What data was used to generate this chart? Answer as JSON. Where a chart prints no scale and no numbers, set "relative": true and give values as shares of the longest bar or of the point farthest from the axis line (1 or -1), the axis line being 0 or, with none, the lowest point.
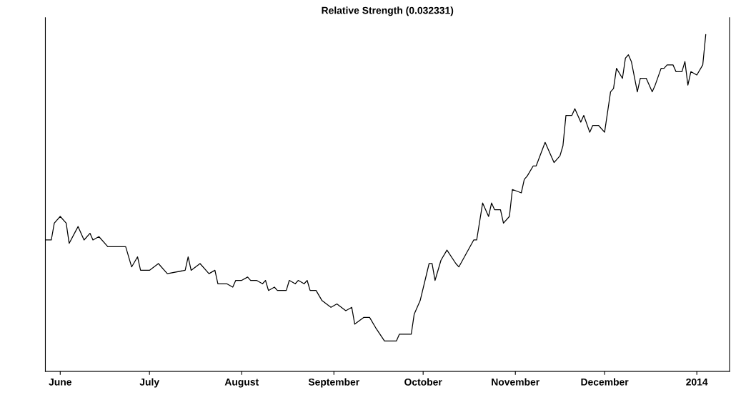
{
  "chart_data": {
    "type": "line",
    "title": "Relative Strength (0.032331)",
    "relative": true,
    "xlim": [
      "2013-05-27",
      "2014-01-12"
    ],
    "xticks": [
      {
        "value": "2013-06-01",
        "label": "June"
      },
      {
        "value": "2013-07-01",
        "label": "July"
      },
      {
        "value": "2013-08-01",
        "label": "August"
      },
      {
        "value": "2013-09-01",
        "label": "September"
      },
      {
        "value": "2013-10-01",
        "label": "October"
      },
      {
        "value": "2013-11-01",
        "label": "November"
      },
      {
        "value": "2013-12-01",
        "label": "December"
      },
      {
        "value": "2014-01-01",
        "label": "2014"
      }
    ],
    "grid": false,
    "marker": "none",
    "line_style": "solid",
    "series": [
      {
        "color": "#000000",
        "x": [
          "2013-05-27",
          "2013-05-29",
          "2013-05-30",
          "2013-06-01",
          "2013-06-03",
          "2013-06-04",
          "2013-06-07",
          "2013-06-09",
          "2013-06-11",
          "2013-06-12",
          "2013-06-14",
          "2013-06-17",
          "2013-06-18",
          "2013-06-23",
          "2013-06-25",
          "2013-06-27",
          "2013-06-28",
          "2013-07-01",
          "2013-07-04",
          "2013-07-07",
          "2013-07-13",
          "2013-07-14",
          "2013-07-15",
          "2013-07-18",
          "2013-07-21",
          "2013-07-23",
          "2013-07-24",
          "2013-07-27",
          "2013-07-29",
          "2013-07-30",
          "2013-08-01",
          "2013-08-03",
          "2013-08-04",
          "2013-08-06",
          "2013-08-08",
          "2013-08-09",
          "2013-08-10",
          "2013-08-12",
          "2013-08-13",
          "2013-08-16",
          "2013-08-17",
          "2013-08-19",
          "2013-08-20",
          "2013-08-22",
          "2013-08-23",
          "2013-08-24",
          "2013-08-26",
          "2013-08-28",
          "2013-08-31",
          "2013-09-02",
          "2013-09-05",
          "2013-09-07",
          "2013-09-08",
          "2013-09-11",
          "2013-09-13",
          "2013-09-15",
          "2013-09-18",
          "2013-09-22",
          "2013-09-23",
          "2013-09-27",
          "2013-09-28",
          "2013-09-30",
          "2013-10-03",
          "2013-10-04",
          "2013-10-05",
          "2013-10-07",
          "2013-10-09",
          "2013-10-12",
          "2013-10-13",
          "2013-10-18",
          "2013-10-19",
          "2013-10-21",
          "2013-10-23",
          "2013-10-24",
          "2013-10-25",
          "2013-10-27",
          "2013-10-28",
          "2013-10-30",
          "2013-10-31",
          "2013-11-03",
          "2013-11-04",
          "2013-11-05",
          "2013-11-07",
          "2013-11-08",
          "2013-11-11",
          "2013-11-14",
          "2013-11-16",
          "2013-11-17",
          "2013-11-18",
          "2013-11-20",
          "2013-11-21",
          "2013-11-23",
          "2013-11-24",
          "2013-11-26",
          "2013-11-27",
          "2013-11-29",
          "2013-12-01",
          "2013-12-03",
          "2013-12-04",
          "2013-12-05",
          "2013-12-07",
          "2013-12-08",
          "2013-12-09",
          "2013-12-10",
          "2013-12-12",
          "2013-12-13",
          "2013-12-15",
          "2013-12-17",
          "2013-12-18",
          "2013-12-20",
          "2013-12-21",
          "2013-12-22",
          "2013-12-24",
          "2013-12-25",
          "2013-12-27",
          "2013-12-28",
          "2013-12-29",
          "2013-12-30",
          "2014-01-01",
          "2014-01-03",
          "2014-01-04"
        ],
        "values": [
          0.39,
          0.39,
          0.44,
          0.46,
          0.44,
          0.38,
          0.43,
          0.39,
          0.41,
          0.39,
          0.4,
          0.37,
          0.37,
          0.37,
          0.31,
          0.34,
          0.3,
          0.3,
          0.32,
          0.29,
          0.3,
          0.34,
          0.3,
          0.32,
          0.29,
          0.3,
          0.26,
          0.26,
          0.25,
          0.27,
          0.27,
          0.28,
          0.27,
          0.27,
          0.26,
          0.27,
          0.24,
          0.25,
          0.24,
          0.24,
          0.27,
          0.26,
          0.27,
          0.26,
          0.27,
          0.24,
          0.24,
          0.21,
          0.19,
          0.2,
          0.18,
          0.19,
          0.14,
          0.16,
          0.16,
          0.13,
          0.09,
          0.09,
          0.11,
          0.11,
          0.17,
          0.21,
          0.32,
          0.32,
          0.27,
          0.33,
          0.36,
          0.32,
          0.31,
          0.39,
          0.39,
          0.5,
          0.46,
          0.5,
          0.48,
          0.48,
          0.44,
          0.46,
          0.54,
          0.53,
          0.57,
          0.58,
          0.61,
          0.61,
          0.68,
          0.62,
          0.64,
          0.67,
          0.76,
          0.76,
          0.78,
          0.74,
          0.76,
          0.71,
          0.73,
          0.73,
          0.71,
          0.83,
          0.84,
          0.9,
          0.87,
          0.93,
          0.94,
          0.92,
          0.83,
          0.87,
          0.87,
          0.83,
          0.85,
          0.9,
          0.9,
          0.91,
          0.91,
          0.89,
          0.89,
          0.92,
          0.85,
          0.89,
          0.88,
          0.91,
          1.0
        ]
      }
    ]
  }
}
